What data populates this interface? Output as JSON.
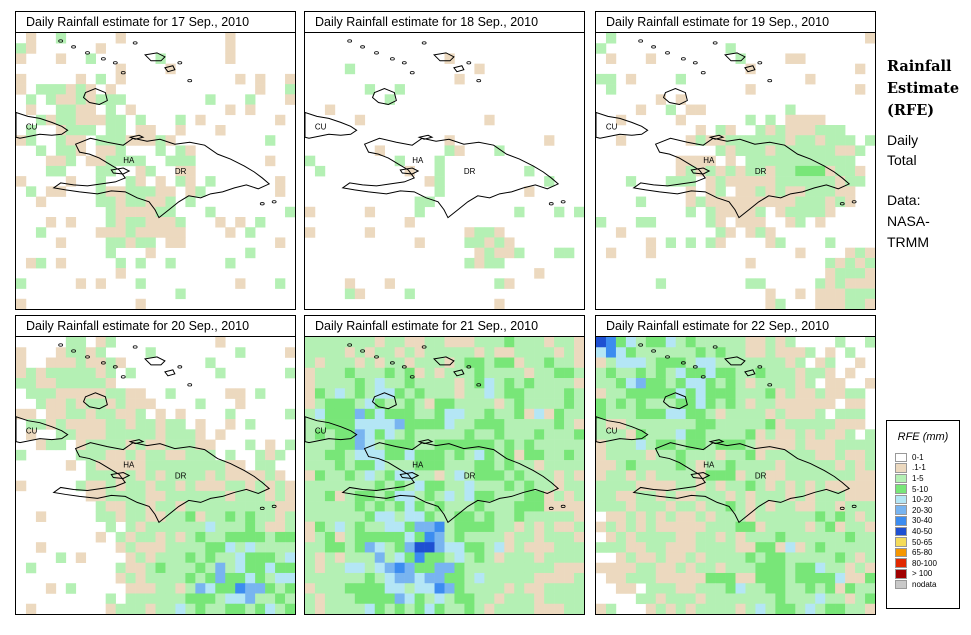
{
  "panels": [
    {
      "title": "Daily Rainfall estimate for  17 Sep., 2010",
      "key": "p17"
    },
    {
      "title": "Daily Rainfall estimate for  18 Sep., 2010",
      "key": "p18"
    },
    {
      "title": "Daily Rainfall estimate for  19 Sep., 2010",
      "key": "p19"
    },
    {
      "title": "Daily Rainfall estimate for  20 Sep., 2010",
      "key": "p20"
    },
    {
      "title": "Daily Rainfall estimate for  21 Sep., 2010",
      "key": "p21"
    },
    {
      "title": "Daily Rainfall estimate for  22 Sep., 2010",
      "key": "p22"
    }
  ],
  "map_labels": {
    "cuba": "CU",
    "haiti": "HA",
    "dominican_republic": "DR"
  },
  "sidebar": {
    "title_lines": [
      "Rainfall",
      "Estimate",
      "(RFE)"
    ],
    "desc_lines": [
      "Daily",
      "Total"
    ],
    "data_lines": [
      "Data:",
      "NASA-",
      "TRMM"
    ]
  },
  "legend": {
    "title": "RFE (mm)",
    "items": [
      {
        "label": "0-1",
        "color": "#ffffff"
      },
      {
        "label": ".1-1",
        "color": "#ecd9bf"
      },
      {
        "label": "1-5",
        "color": "#b4f0b4"
      },
      {
        "label": "5-10",
        "color": "#78e678"
      },
      {
        "label": "10-20",
        "color": "#b4e6f5"
      },
      {
        "label": "20-30",
        "color": "#78b4f0"
      },
      {
        "label": "30-40",
        "color": "#3c8cf0"
      },
      {
        "label": "40-50",
        "color": "#1e50d2"
      },
      {
        "label": "50-65",
        "color": "#f5dc5a"
      },
      {
        "label": "65-80",
        "color": "#f59600"
      },
      {
        "label": "80-100",
        "color": "#e12800"
      },
      {
        "label": "> 100",
        "color": "#a00000"
      },
      {
        "label": "nodata",
        "color": "#c8c8c8"
      }
    ]
  },
  "rainfall_fields": {
    "p17": {
      "seed": 17,
      "blobs": [
        [
          0.5,
          0.5,
          0.25,
          0.4
        ],
        [
          0.45,
          0.68,
          0.1,
          1.1
        ],
        [
          0.2,
          0.3,
          0.2,
          0.5
        ]
      ],
      "sparse": 0.16,
      "gradient": 0
    },
    "p18": {
      "seed": 18,
      "blobs": [
        [
          0.5,
          0.5,
          0.18,
          0.3
        ],
        [
          0.65,
          0.78,
          0.08,
          0.9
        ]
      ],
      "sparse": 0.08,
      "gradient": 0
    },
    "p19": {
      "seed": 19,
      "blobs": [
        [
          0.78,
          0.48,
          0.14,
          2.0
        ],
        [
          0.5,
          0.55,
          0.25,
          0.6
        ],
        [
          0.95,
          0.95,
          0.14,
          1.3
        ]
      ],
      "sparse": 0.12,
      "gradient": 0
    },
    "p20": {
      "seed": 20,
      "blobs": [
        [
          0.82,
          0.9,
          0.3,
          3.3
        ],
        [
          0.45,
          0.48,
          0.2,
          1.1
        ],
        [
          0.2,
          0.2,
          0.2,
          0.8
        ]
      ],
      "sparse": 0.2,
      "gradient": 0
    },
    "p21": {
      "seed": 21,
      "blobs": [
        [
          0.4,
          0.6,
          0.5,
          2.3
        ],
        [
          0.2,
          0.3,
          0.18,
          2.0
        ],
        [
          0.4,
          0.85,
          0.2,
          2.4
        ],
        [
          0.8,
          0.2,
          0.3,
          1.3
        ]
      ],
      "sparse": 0.4,
      "gradient": 0
    },
    "p22": {
      "seed": 22,
      "blobs": [
        [
          0.25,
          0.15,
          0.28,
          2.6
        ],
        [
          0.75,
          0.95,
          0.3,
          2.2
        ],
        [
          0.5,
          0.5,
          0.5,
          0.95
        ],
        [
          0.05,
          0.02,
          0.06,
          4.5
        ]
      ],
      "sparse": 0.35,
      "gradient": 0
    }
  }
}
